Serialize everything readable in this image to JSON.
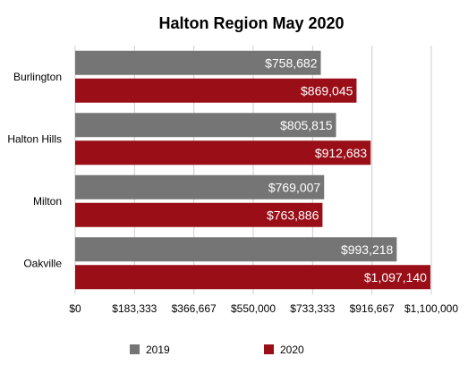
{
  "chart_data": {
    "type": "bar",
    "orientation": "horizontal",
    "title": "Halton Region May 2020",
    "categories": [
      "Burlington",
      "Halton Hills",
      "Milton",
      "Oakville"
    ],
    "series": [
      {
        "name": "2019",
        "color": "#757575",
        "values": [
          758682,
          805815,
          769007,
          993218
        ],
        "labels": [
          "$758,682",
          "$805,815",
          "$769,007",
          "$993,218"
        ]
      },
      {
        "name": "2020",
        "color": "#990e17",
        "values": [
          869045,
          912683,
          763886,
          1097140
        ],
        "labels": [
          "$869,045",
          "$912,683",
          "$763,886",
          "$1,097,140"
        ]
      }
    ],
    "xlim": [
      0,
      1100000
    ],
    "xticks": [
      0,
      183333,
      366667,
      550000,
      733333,
      916667,
      1100000
    ],
    "xtick_labels": [
      "$0",
      "$183,333",
      "$366,667",
      "$550,000",
      "$733,333",
      "$916,667",
      "$1,100,000"
    ],
    "grid": "vertical",
    "legend_position": "bottom",
    "xlabel": "",
    "ylabel": ""
  }
}
